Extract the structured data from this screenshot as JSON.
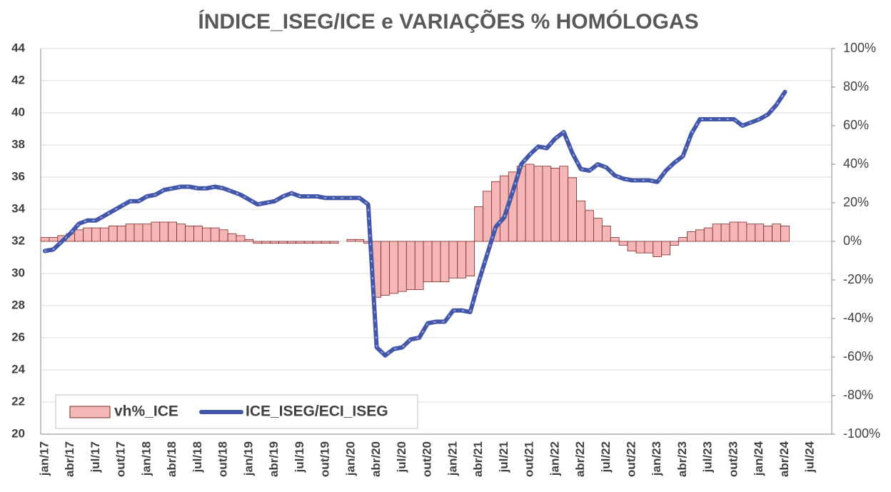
{
  "chart_data": {
    "type": "combo",
    "title": "ÍNDICE_ISEG/ICE  e VARIAÇÕES % HOMÓLOGAS",
    "categories": [
      "jan/17",
      null,
      null,
      "abr/17",
      null,
      null,
      "jul/17",
      null,
      null,
      "out/17",
      null,
      null,
      "jan/18",
      null,
      null,
      "abr/18",
      null,
      null,
      "jul/18",
      null,
      null,
      "out/18",
      null,
      null,
      "jan/19",
      null,
      null,
      "abr/19",
      null,
      null,
      "jul/19",
      null,
      null,
      "out/19",
      null,
      null,
      "jan/20",
      null,
      null,
      "abr/20",
      null,
      null,
      "jul/20",
      null,
      null,
      "out/20",
      null,
      null,
      "jan/21",
      null,
      null,
      "abr/21",
      null,
      null,
      "jul/21",
      null,
      null,
      "out/21",
      null,
      null,
      "jan/22",
      null,
      null,
      "abr/22",
      null,
      null,
      "jul/22",
      null,
      null,
      "out/22",
      null,
      null,
      "jan/23",
      null,
      null,
      "abr/23",
      null,
      null,
      "jul/23",
      null,
      null,
      "out/23",
      null,
      null,
      "jan/24",
      null,
      null,
      "abr/24",
      null,
      null,
      "jul/24",
      null,
      null
    ],
    "series": [
      {
        "name": "vh%_ICE",
        "type": "bar",
        "axis": "y2",
        "color": "#f4b6b6",
        "values": [
          2,
          2,
          3,
          4,
          6,
          7,
          7,
          7,
          8,
          8,
          9,
          9,
          9,
          10,
          10,
          10,
          9,
          8,
          8,
          7,
          7,
          6,
          4,
          3,
          1,
          -1,
          -1,
          -1,
          -1,
          -1,
          -1,
          -1,
          -1,
          -1,
          -1,
          0,
          1,
          1,
          -1,
          -29,
          -28,
          -27,
          -26,
          -25,
          -25,
          -21,
          -21,
          -21,
          -19,
          -19,
          -18,
          18,
          26,
          31,
          34,
          36,
          39,
          40,
          39,
          39,
          38,
          39,
          33,
          21,
          16,
          12,
          8,
          2,
          -2,
          -5,
          -6,
          -6,
          -8,
          -7,
          -2,
          2,
          5,
          6,
          7,
          9,
          9,
          10,
          10,
          9,
          9,
          8,
          9,
          8,
          null,
          null,
          null,
          null,
          null
        ]
      },
      {
        "name": "ICE_ISEG/ECI_ISEG",
        "type": "line",
        "axis": "y",
        "color": "#4356a8",
        "values": [
          31.4,
          31.5,
          32.0,
          32.5,
          33.1,
          33.3,
          33.3,
          33.6,
          33.9,
          34.2,
          34.5,
          34.5,
          34.8,
          34.9,
          35.2,
          35.3,
          35.4,
          35.4,
          35.3,
          35.3,
          35.4,
          35.3,
          35.1,
          34.9,
          34.6,
          34.3,
          34.4,
          34.5,
          34.8,
          35.0,
          34.8,
          34.8,
          34.8,
          34.7,
          34.7,
          34.7,
          34.7,
          34.7,
          34.3,
          25.4,
          24.9,
          25.3,
          25.4,
          25.9,
          26.0,
          26.9,
          27.0,
          27.0,
          27.7,
          27.7,
          27.6,
          29.5,
          31.2,
          32.9,
          33.5,
          35.1,
          36.8,
          37.4,
          37.9,
          37.8,
          38.4,
          38.8,
          37.5,
          36.5,
          36.4,
          36.8,
          36.6,
          36.1,
          35.9,
          35.8,
          35.8,
          35.8,
          35.7,
          36.4,
          36.9,
          37.3,
          38.7,
          39.6,
          39.6,
          39.6,
          39.6,
          39.6,
          39.2,
          39.4,
          39.6,
          39.9,
          40.5,
          41.3,
          null,
          null,
          null,
          null,
          null
        ]
      }
    ],
    "ylim": [
      20,
      44
    ],
    "yticks": [
      20,
      22,
      24,
      26,
      28,
      30,
      32,
      34,
      36,
      38,
      40,
      42,
      44
    ],
    "y2lim": [
      -100,
      100
    ],
    "y2ticks": [
      {
        "value": -100,
        "label": "-100%"
      },
      {
        "value": -80,
        "label": "-80%"
      },
      {
        "value": -60,
        "label": "-60%"
      },
      {
        "value": -40,
        "label": "-40%"
      },
      {
        "value": -20,
        "label": "-20%"
      },
      {
        "value": 0,
        "label": "0%"
      },
      {
        "value": 20,
        "label": "20%"
      },
      {
        "value": 40,
        "label": "40%"
      },
      {
        "value": 60,
        "label": "60%"
      },
      {
        "value": 80,
        "label": "80%"
      },
      {
        "value": 100,
        "label": "100%"
      }
    ],
    "grid": true
  }
}
